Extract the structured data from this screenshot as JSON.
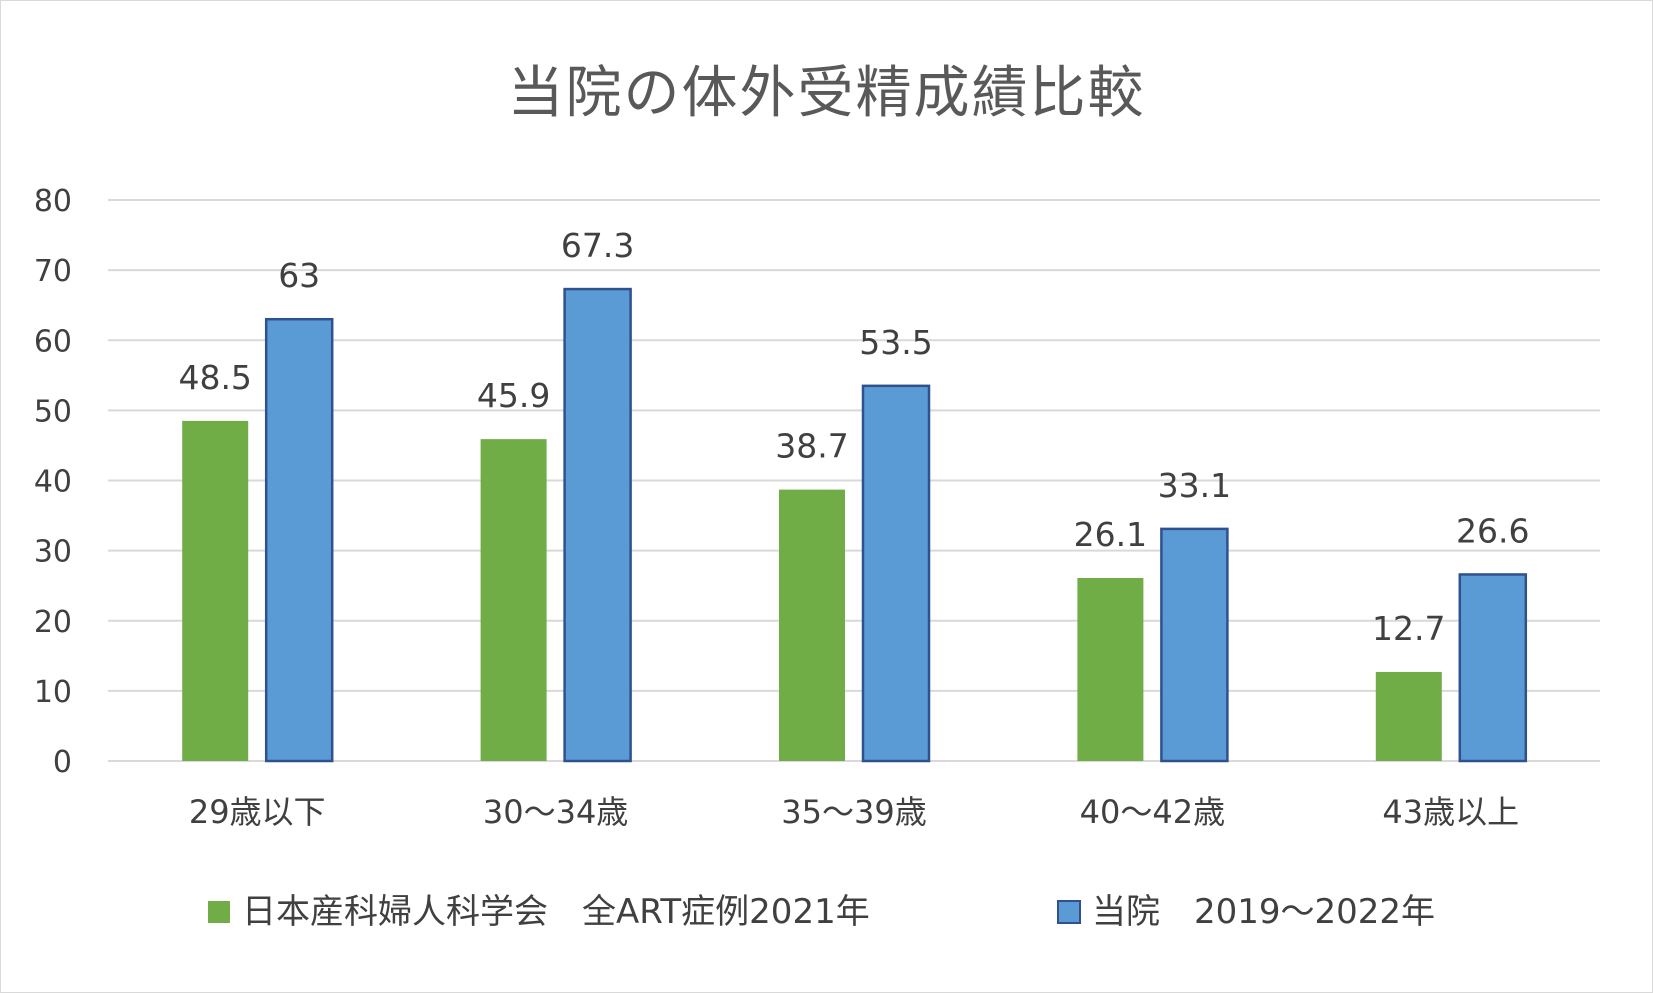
{
  "chart_data": {
    "type": "bar",
    "title": "当院の体外受精成績比較",
    "categories": [
      "29歳以下",
      "30〜34歳",
      "35〜39歳",
      "40〜42歳",
      "43歳以上"
    ],
    "series": [
      {
        "name": "日本産科婦人科学会　全ART症例2021年",
        "values": [
          48.5,
          45.9,
          38.7,
          26.1,
          12.7
        ],
        "color": "#70ad47"
      },
      {
        "name": "当院　2019〜2022年",
        "values": [
          63,
          67.3,
          53.5,
          33.1,
          26.6
        ],
        "color": "#5b9bd5",
        "border": "#2f528f"
      }
    ],
    "ylim": [
      0,
      80
    ],
    "yticks": [
      0,
      10,
      20,
      30,
      40,
      50,
      60,
      70,
      80
    ],
    "grid": true,
    "legend": "bottom",
    "xlabel": "",
    "ylabel": ""
  }
}
